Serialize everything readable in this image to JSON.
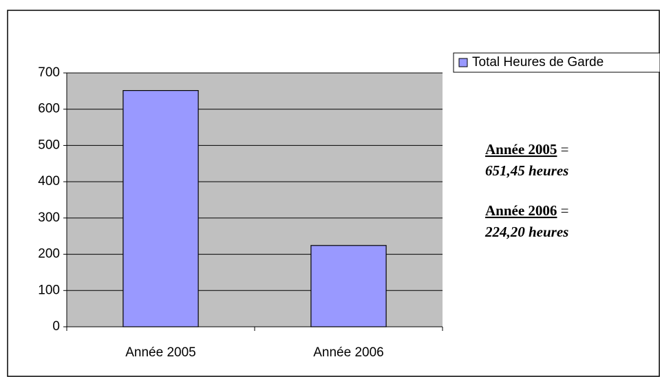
{
  "chart_data": {
    "type": "bar",
    "categories": [
      "Année 2005",
      "Année 2006"
    ],
    "series": [
      {
        "name": "Total Heures de Garde",
        "color": "#9999ff",
        "values": [
          651.45,
          224.2
        ]
      }
    ],
    "ylim": [
      0,
      700
    ],
    "yticks": [
      0,
      100,
      200,
      300,
      400,
      500,
      600,
      700
    ],
    "grid": true,
    "legend": "right",
    "annotations": [
      {
        "label": "Année 2005",
        "sep": "=",
        "text": "651,45 heures"
      },
      {
        "label": "Année 2006",
        "sep": "=",
        "text": "224,20 heures"
      }
    ]
  }
}
